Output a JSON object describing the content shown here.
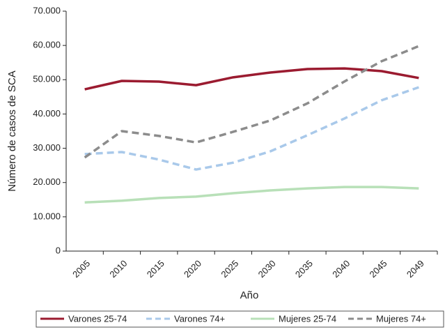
{
  "chart_data": {
    "type": "line",
    "x_label": "Año",
    "y_label": "Número de casos de SCA",
    "categories": [
      "2005",
      "2010",
      "2015",
      "2020",
      "2025",
      "2030",
      "2035",
      "2040",
      "2045",
      "2049"
    ],
    "series": [
      {
        "name": "Varones 25-74",
        "color": "#9b1b30",
        "line_style": "solid",
        "values": [
          47200,
          49650,
          49450,
          48400,
          50700,
          52100,
          53100,
          53300,
          52500,
          50500
        ]
      },
      {
        "name": "Varones 74+",
        "color": "#a9c9ea",
        "line_style": "dashed",
        "values": [
          28300,
          28900,
          26700,
          23800,
          25800,
          29100,
          33800,
          38700,
          44000,
          47800
        ]
      },
      {
        "name": "Mujeres 25-74",
        "color": "#b8e0b8",
        "line_style": "solid",
        "values": [
          14200,
          14700,
          15500,
          15900,
          16900,
          17700,
          18300,
          18700,
          18700,
          18300
        ]
      },
      {
        "name": "Mujeres 74+",
        "color": "#8c8c8c",
        "line_style": "dashed",
        "values": [
          27300,
          35000,
          33600,
          31700,
          34800,
          38100,
          43100,
          49500,
          55400,
          59800
        ]
      }
    ],
    "ylim": [
      0,
      70000
    ],
    "yticks": [
      0,
      {
        "value": 10000,
        "label": "10.000"
      },
      {
        "value": 20000,
        "label": "20.000"
      },
      {
        "value": 30000,
        "label": "30.000"
      },
      {
        "value": 40000,
        "label": "40.000"
      },
      {
        "value": 50000,
        "label": "50.000"
      },
      {
        "value": 60000,
        "label": "60.000"
      },
      {
        "value": 70000,
        "label": "70.000"
      }
    ],
    "legend": "bottom"
  }
}
